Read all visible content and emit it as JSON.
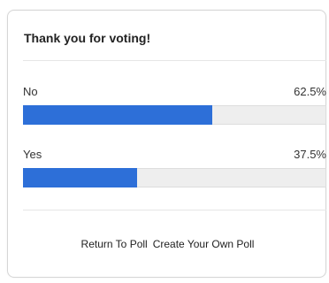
{
  "poll": {
    "title": "Thank you for voting!",
    "options": [
      {
        "label": "No",
        "percent_text": "62.5%",
        "fraction": 0.625
      },
      {
        "label": "Yes",
        "percent_text": "37.5%",
        "fraction": 0.375
      }
    ],
    "bar_color": "#2d6fd8",
    "track_color": "#eeeeee"
  },
  "footer": {
    "return_label": "Return To Poll",
    "create_label": "Create Your Own Poll"
  }
}
